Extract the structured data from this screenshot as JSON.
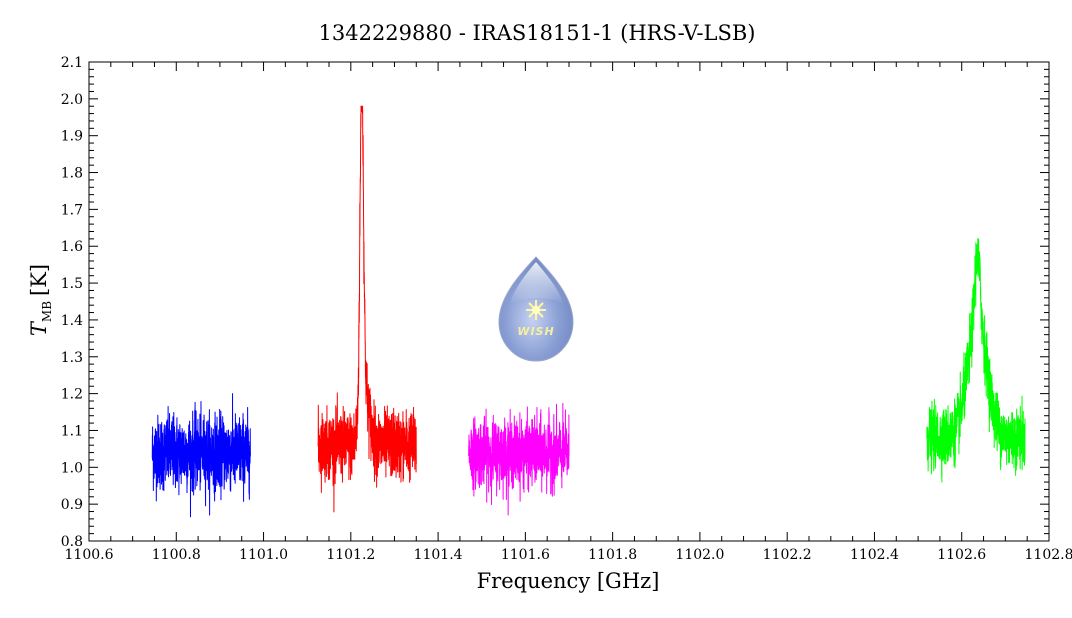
{
  "chart_data": {
    "type": "line",
    "title": "1342229880 - IRAS18151-1 (HRS-V-LSB)",
    "xlabel": "Frequency [GHz]",
    "ylabel": {
      "main": "T",
      "subscript": "MB",
      "unit": "[K]"
    },
    "xlim": [
      1100.6,
      1102.8
    ],
    "ylim": [
      0.8,
      2.1
    ],
    "x_ticks": [
      "1100.6",
      "1100.8",
      "1101.0",
      "1101.2",
      "1101.4",
      "1101.6",
      "1101.8",
      "1102.0",
      "1102.2",
      "1102.4",
      "1102.6",
      "1102.8"
    ],
    "y_ticks": [
      "0.8",
      "0.9",
      "1.0",
      "1.1",
      "1.2",
      "1.3",
      "1.4",
      "1.5",
      "1.6",
      "1.7",
      "1.8",
      "1.9",
      "2.0",
      "2.1"
    ],
    "grid": false,
    "series": [
      {
        "color": "#0000ff",
        "x_start": 1100.745,
        "x_end": 1100.97,
        "baseline": 1.04,
        "noise": 0.05,
        "min": 0.82,
        "max": 1.2,
        "peaks": []
      },
      {
        "color": "#ff0000",
        "x_start": 1101.125,
        "x_end": 1101.35,
        "baseline": 1.06,
        "noise": 0.045,
        "min": 0.85,
        "max": 1.98,
        "peaks": [
          {
            "center": 1101.225,
            "height": 0.88,
            "width": 0.004
          },
          {
            "center": 1101.232,
            "height": 0.15,
            "width": 0.01
          }
        ]
      },
      {
        "color": "#ff00ff",
        "x_start": 1101.47,
        "x_end": 1101.7,
        "baseline": 1.04,
        "noise": 0.045,
        "min": 0.86,
        "max": 1.2,
        "peaks": []
      },
      {
        "color": "#00ff00",
        "x_start": 1102.52,
        "x_end": 1102.745,
        "baseline": 1.08,
        "noise": 0.04,
        "min": 0.92,
        "max": 1.62,
        "peaks": [
          {
            "center": 1102.636,
            "height": 0.32,
            "width": 0.022
          },
          {
            "center": 1102.636,
            "height": 0.18,
            "width": 0.006
          }
        ]
      }
    ]
  },
  "logo": {
    "text": "WISH"
  }
}
